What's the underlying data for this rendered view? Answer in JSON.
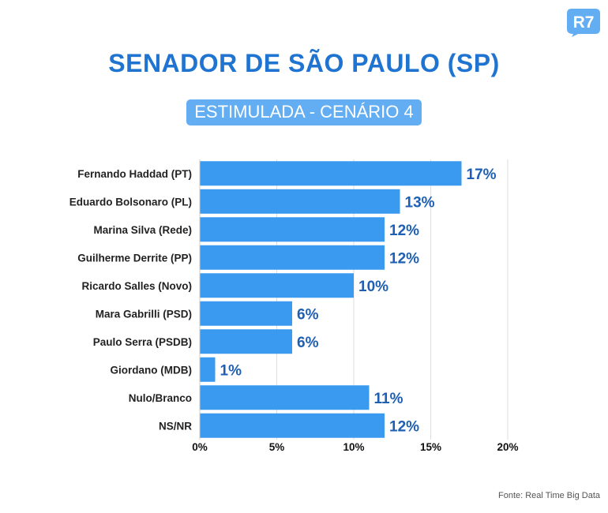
{
  "logo": {
    "text": "R7",
    "color": "#63adf2"
  },
  "header": {
    "title": "SENADOR DE SÃO PAULO (SP)",
    "subtitle": "ESTIMULADA - CENÁRIO 4"
  },
  "footer": {
    "source": "Fonte: Real Time Big Data"
  },
  "colors": {
    "bar": "#3a9af0",
    "title": "#1f74d1",
    "value_label": "#1f5fb3",
    "subtitle_bg": "#63adf2",
    "grid": "#dddddd"
  },
  "chart_data": {
    "type": "bar",
    "orientation": "horizontal",
    "categories": [
      "Fernando Haddad (PT)",
      "Eduardo Bolsonaro (PL)",
      "Marina Silva (Rede)",
      "Guilherme Derrite (PP)",
      "Ricardo Salles (Novo)",
      "Mara Gabrilli (PSD)",
      "Paulo Serra (PSDB)",
      "Giordano (MDB)",
      "Nulo/Branco",
      "NS/NR"
    ],
    "values": [
      17,
      13,
      12,
      12,
      10,
      6,
      6,
      1,
      11,
      12
    ],
    "value_labels": [
      "17%",
      "13%",
      "12%",
      "12%",
      "10%",
      "6%",
      "6%",
      "1%",
      "11%",
      "12%"
    ],
    "xlim": [
      0,
      20
    ],
    "x_ticks": [
      0,
      5,
      10,
      15,
      20
    ],
    "x_tick_labels": [
      "0%",
      "5%",
      "10%",
      "15%",
      "20%"
    ],
    "grid": true,
    "title": "SENADOR DE SÃO PAULO (SP)",
    "subtitle": "ESTIMULADA - CENÁRIO 4",
    "xlabel": "",
    "ylabel": ""
  }
}
